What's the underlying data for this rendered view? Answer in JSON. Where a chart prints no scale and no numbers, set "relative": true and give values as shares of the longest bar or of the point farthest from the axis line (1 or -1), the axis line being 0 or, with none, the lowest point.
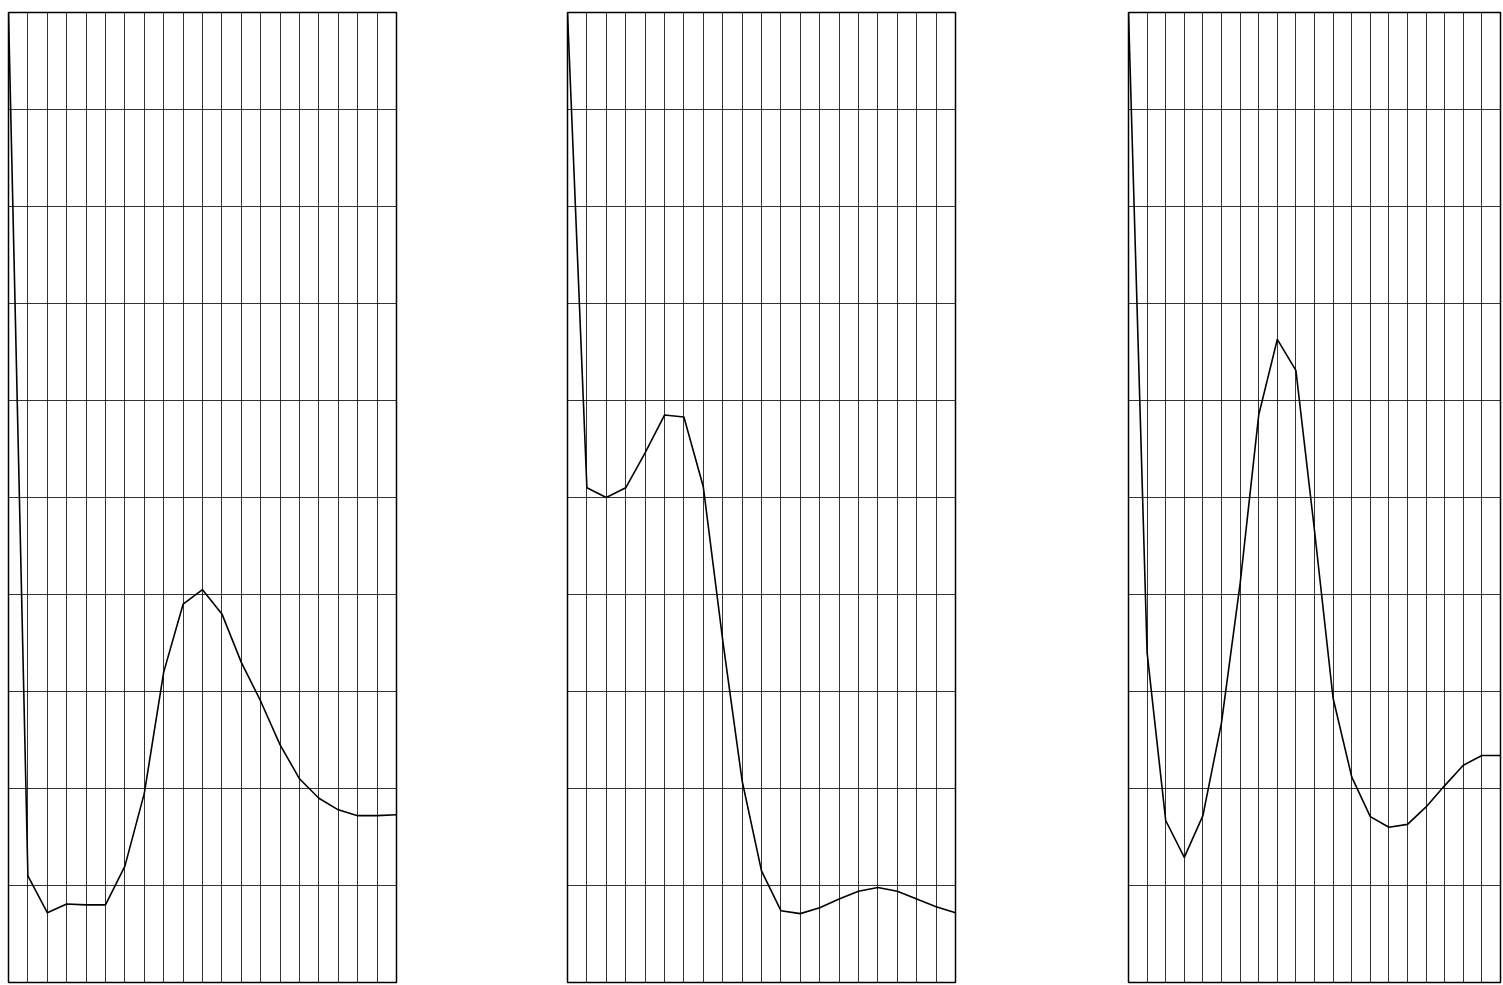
{
  "chart_data": [
    {
      "type": "line",
      "relative": true,
      "grid": true,
      "categories": [
        null,
        null,
        null,
        null,
        null,
        null,
        null,
        null,
        null,
        null,
        null,
        null,
        null,
        null,
        null,
        null,
        null,
        null,
        null,
        null,
        null
      ],
      "series": [
        {
          "color": "#000000",
          "values": [
            1.0,
            0.11,
            0.072,
            0.081,
            0.08,
            0.08,
            0.12,
            0.195,
            0.32,
            0.39,
            0.405,
            0.38,
            0.33,
            0.29,
            0.245,
            0.21,
            0.19,
            0.178,
            0.172,
            0.172,
            0.173
          ]
        }
      ]
    },
    {
      "type": "line",
      "relative": true,
      "grid": true,
      "categories": [
        null,
        null,
        null,
        null,
        null,
        null,
        null,
        null,
        null,
        null,
        null,
        null,
        null,
        null,
        null,
        null,
        null,
        null,
        null,
        null,
        null
      ],
      "series": [
        {
          "color": "#000000",
          "values": [
            1.0,
            0.51,
            0.5,
            0.51,
            0.546,
            0.585,
            0.583,
            0.511,
            0.353,
            0.208,
            0.115,
            0.074,
            0.071,
            0.077,
            0.086,
            0.094,
            0.098,
            0.094,
            0.086,
            0.078,
            0.072
          ]
        }
      ]
    },
    {
      "type": "line",
      "relative": true,
      "grid": true,
      "categories": [
        null,
        null,
        null,
        null,
        null,
        null,
        null,
        null,
        null,
        null,
        null,
        null,
        null,
        null,
        null,
        null,
        null,
        null,
        null,
        null,
        null
      ],
      "series": [
        {
          "color": "#000000",
          "values": [
            1.0,
            0.34,
            0.167,
            0.129,
            0.172,
            0.268,
            0.411,
            0.585,
            0.663,
            0.631,
            0.466,
            0.293,
            0.212,
            0.171,
            0.16,
            0.163,
            0.181,
            0.203,
            0.224,
            0.234,
            0.234
          ]
        }
      ]
    }
  ]
}
